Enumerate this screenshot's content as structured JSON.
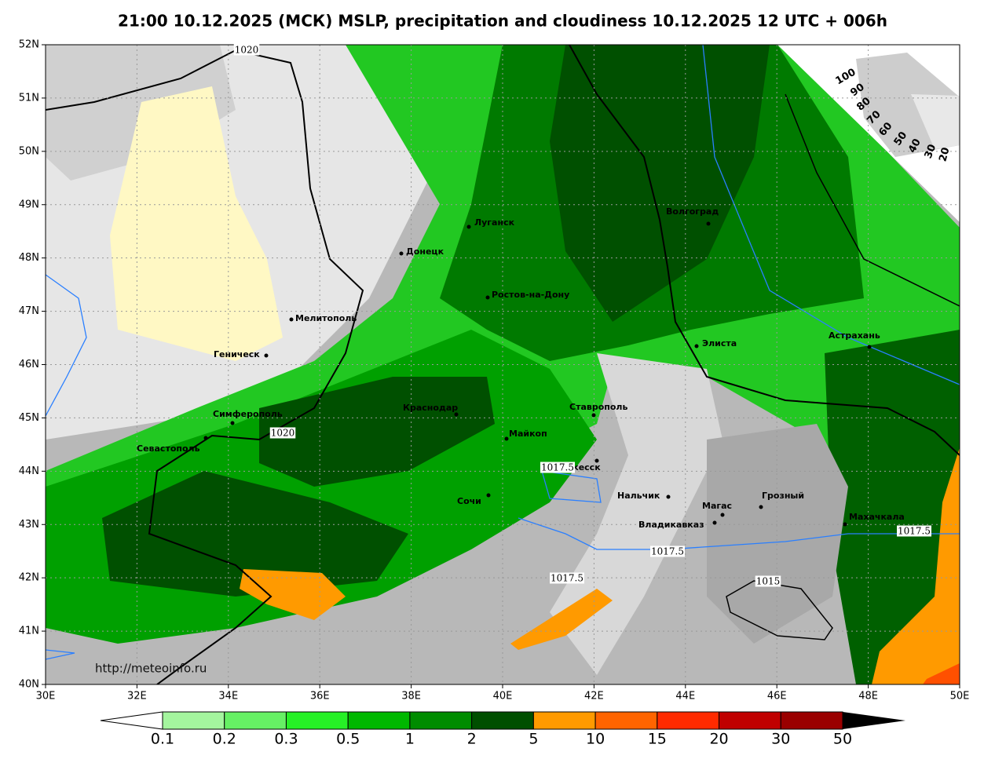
{
  "header": {
    "title": "21:00 10.12.2025 (МСК) MSLP, precipitation and cloudiness 10.12.2025 12 UTC + 006h"
  },
  "axes": {
    "lat_labels": [
      "52N",
      "51N",
      "50N",
      "49N",
      "48N",
      "47N",
      "46N",
      "45N",
      "44N",
      "43N",
      "42N",
      "41N",
      "40N"
    ],
    "lon_labels": [
      "30E",
      "32E",
      "34E",
      "36E",
      "38E",
      "40E",
      "42E",
      "44E",
      "46E",
      "48E",
      "50E"
    ]
  },
  "cities": [
    "Луганск",
    "Донецк",
    "Ростов-на-Дону",
    "Волгоград",
    "Мелитополь",
    "Геническ",
    "Элиста",
    "Астрахань",
    "Симферополь",
    "Краснодар",
    "Ставрополь",
    "Майкоп",
    "Севастополь",
    "Черкесск",
    "Сочи",
    "Нальчик",
    "Магас",
    "Грозный",
    "Владикавказ",
    "Махачкала"
  ],
  "isobars": [
    "1020",
    "1020",
    "1017.5",
    "1017.5",
    "1017.5",
    "1015",
    "1017.5"
  ],
  "cloud_scale": [
    "100",
    "90",
    "80",
    "70",
    "60",
    "50",
    "40",
    "30",
    "20"
  ],
  "precip_legend": [
    "0.1",
    "0.2",
    "0.3",
    "0.5",
    "1",
    "2",
    "5",
    "10",
    "15",
    "20",
    "30",
    "50"
  ],
  "source": "http://meteoinfo.ru"
}
